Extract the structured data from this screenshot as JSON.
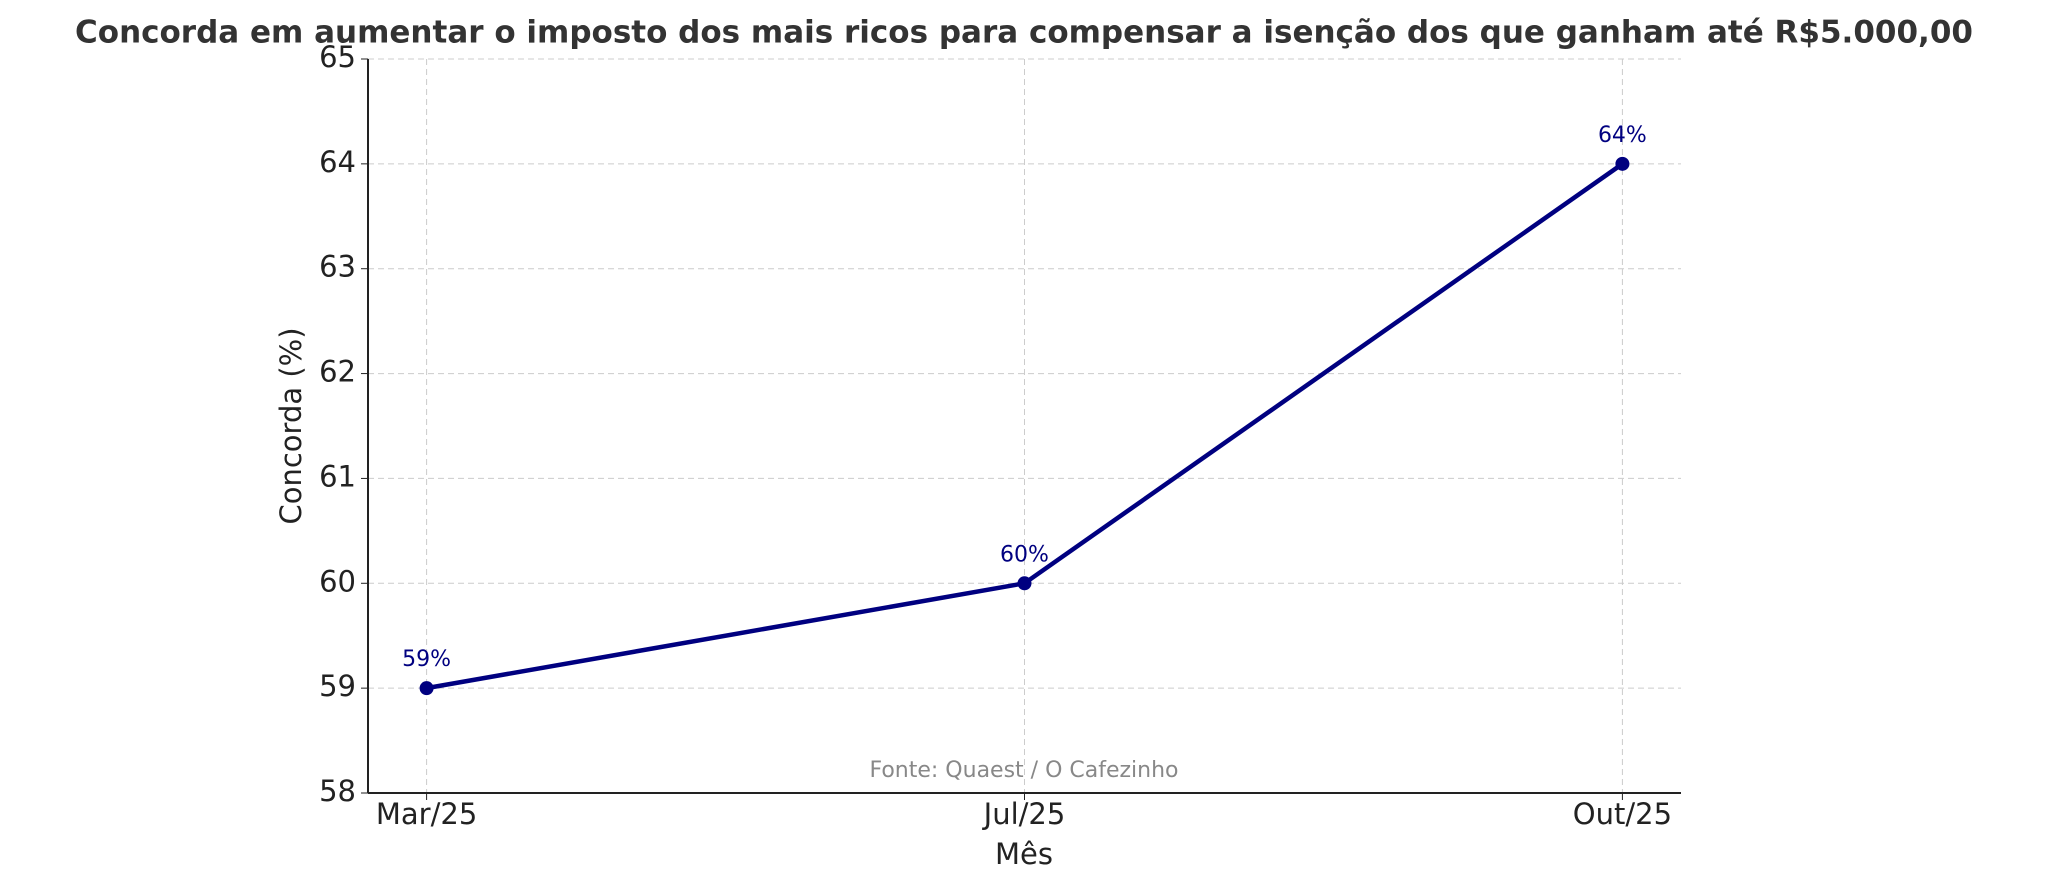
{
  "chart_data": {
    "type": "line",
    "title": "Concorda em aumentar o imposto dos mais ricos para compensar a isenção dos que ganham até R$5.000,00",
    "x_label": "Mês",
    "y_label": "Concorda (%)",
    "annotation": "Fonte: Quaest / O Cafezinho",
    "categories": [
      "Mar/25",
      "Jul/25",
      "Out/25"
    ],
    "series": [
      {
        "name": "Concorda",
        "color": "#000080",
        "values": [
          59,
          60,
          64
        ],
        "value_labels": [
          "59%",
          "60%",
          "64%"
        ]
      }
    ],
    "ylim": [
      58,
      65
    ],
    "yticks": [
      58,
      59,
      60,
      61,
      62,
      63,
      64,
      65
    ],
    "grid": true
  }
}
